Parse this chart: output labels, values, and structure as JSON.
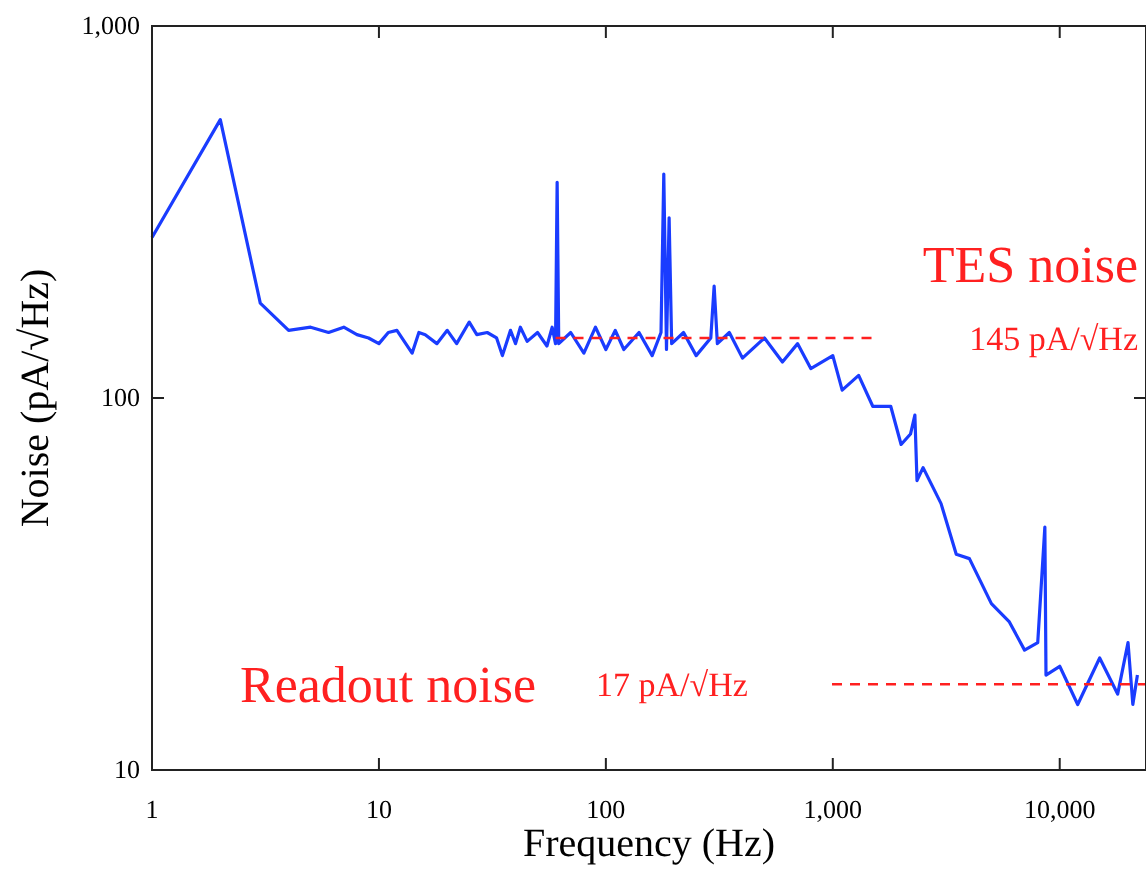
{
  "chart_data": {
    "type": "line",
    "xlabel": "Frequency (Hz)",
    "ylabel": "Noise (pA/√Hz)",
    "log": "xy",
    "grid": false,
    "marker": "none",
    "line_style": "solid",
    "xlim": [
      1,
      24000
    ],
    "ylim": [
      10,
      1000
    ],
    "xticks": [
      1,
      10,
      100,
      {
        "value": 1000,
        "label": "1,000"
      },
      {
        "value": 10000,
        "label": "10,000"
      }
    ],
    "yticks": [
      10,
      100,
      {
        "value": 1000,
        "label": "1,000"
      }
    ],
    "series": [
      {
        "color": "#1a3cff",
        "x": [
          1,
          2,
          3,
          4,
          5,
          6,
          7,
          8,
          9,
          10,
          11,
          12,
          14,
          15,
          16,
          18,
          20,
          22,
          25,
          27,
          30,
          33,
          35,
          38,
          40,
          42,
          45,
          50,
          55,
          58,
          60,
          61,
          62,
          70,
          80,
          90,
          100,
          110,
          120,
          140,
          160,
          175,
          180,
          185,
          190,
          195,
          220,
          250,
          290,
          300,
          310,
          350,
          400,
          500,
          600,
          700,
          800,
          1000,
          1100,
          1300,
          1500,
          1800,
          2000,
          2200,
          2300,
          2350,
          2500,
          3000,
          3500,
          4000,
          5000,
          6000,
          7000,
          8000,
          8600,
          8700,
          10000,
          12000,
          15000,
          18000,
          20000,
          21000,
          22000
        ],
        "values": [
          270,
          560,
          180,
          152,
          155,
          150,
          155,
          148,
          145,
          140,
          150,
          152,
          132,
          150,
          148,
          140,
          152,
          140,
          160,
          148,
          150,
          145,
          130,
          152,
          140,
          155,
          142,
          150,
          138,
          155,
          140,
          380,
          140,
          150,
          132,
          155,
          135,
          152,
          135,
          150,
          130,
          150,
          400,
          135,
          305,
          140,
          150,
          130,
          145,
          200,
          140,
          150,
          128,
          145,
          125,
          140,
          120,
          130,
          105,
          115,
          95,
          95,
          75,
          80,
          90,
          60,
          65,
          52,
          38,
          37,
          28,
          25,
          21,
          22,
          45,
          18,
          19,
          15,
          20,
          16,
          22,
          15,
          18
        ]
      }
    ],
    "ref_lines": [
      {
        "axis": "y",
        "value": 145,
        "label": "145 pA/√Hz",
        "color": "#ff2020",
        "line_style": "dashed"
      },
      {
        "axis": "y",
        "value": 17,
        "label": "17 pA/√Hz",
        "color": "#ff2020",
        "line_style": "dashed"
      }
    ],
    "annotations": [
      "TES noise",
      "Readout noise"
    ]
  }
}
